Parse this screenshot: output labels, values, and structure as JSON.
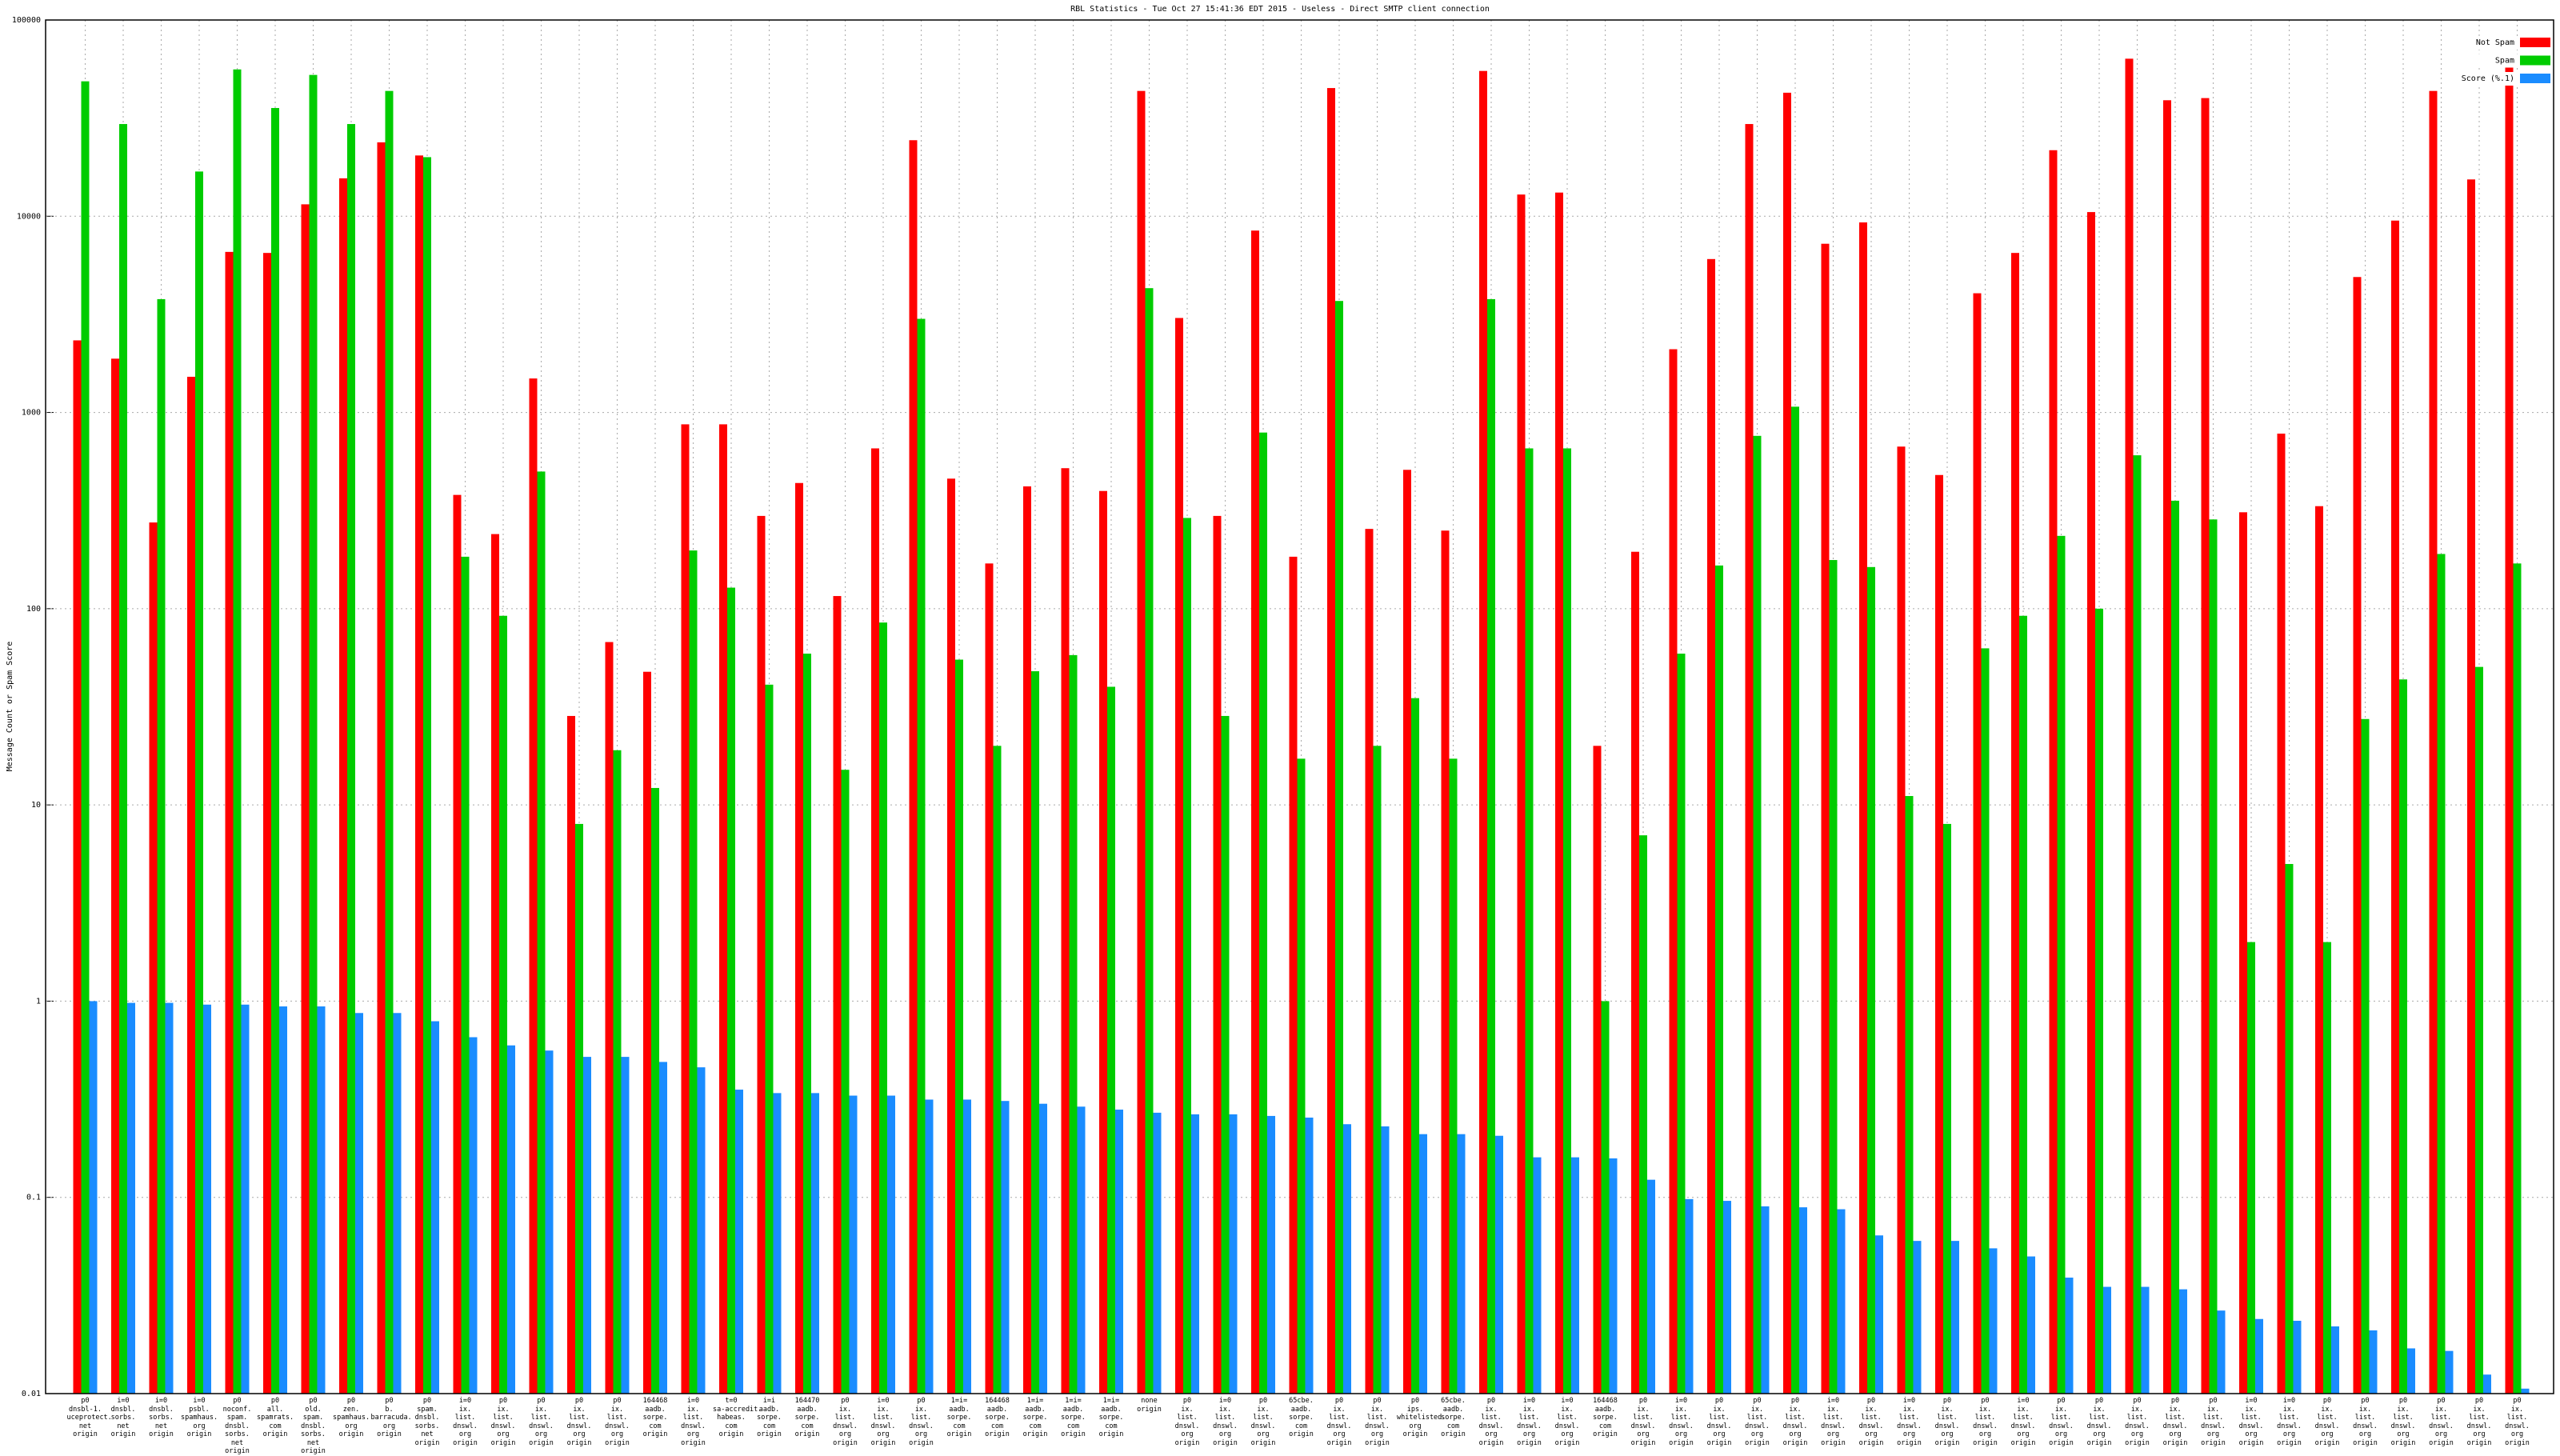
{
  "chart_data": {
    "type": "bar",
    "title": "RBL Statistics - Tue Oct 27 15:41:36 EDT 2015 - Useless - Direct SMTP client connection",
    "y_label": "Message Count or Spam Score",
    "yscale": "log",
    "grid": true,
    "legend": "top-right",
    "ylim": [
      0.01,
      100000
    ],
    "yticks": [
      0.01,
      0.1,
      1,
      10,
      100,
      1000,
      10000,
      100000
    ],
    "categories": [
      "p0\ndnsbl-1.\nuceprotect.\nnet\norigin",
      "i=0\ndnsbl.\nsorbs.\nnet\norigin",
      "i=0\ndnsbl.\nsorbs.\nnet\norigin",
      "i=0\npsbl.\nspamhaus.\norg\norigin",
      "p0\nnoconf.\nspam.\ndnsbl.\nsorbs.\nnet\norigin",
      "p0\nall.\nspamrats.\ncom\norigin",
      "p0\nold.\nspam.\ndnsbl.\nsorbs.\nnet\norigin",
      "p0\nzen.\nspamhaus.\norg\norigin",
      "p0\nb.\nbarracuda.\norg\norigin",
      "p0\nspam.\ndnsbl.\nsorbs.\nnet\norigin",
      "i=0\nix.\nlist.\ndnswl.\norg\norigin",
      "p0\nix.\nlist.\ndnswl.\norg\norigin",
      "p0\nix.\nlist.\ndnswl.\norg\norigin",
      "p0\nix.\nlist.\ndnswl.\norg\norigin",
      "p0\nix.\nlist.\ndnswl.\norg\norigin",
      "164468\naadb.\nsorpe.\ncom\norigin",
      "i=0\nix.\nlist.\ndnswl.\norg\norigin",
      "t=0\nsa-accredit.\nhabeas.\ncom\norigin",
      "i=i\naadb.\nsorpe.\ncom\norigin",
      "164470\naadb.\nsorpe.\ncom\norigin",
      "p0\nix.\nlist.\ndnswl.\norg\norigin",
      "i=0\nix.\nlist.\ndnswl.\norg\norigin",
      "p0\nix.\nlist.\ndnswl.\norg\norigin",
      "1=i=\naadb.\nsorpe.\ncom\norigin",
      "164468\naadb.\nsorpe.\ncom\norigin",
      "1=i=\naadb.\nsorpe.\ncom\norigin",
      "1=i=\naadb.\nsorpe.\ncom\norigin",
      "1=i=\naadb.\nsorpe.\ncom\norigin",
      "none\norigin",
      "p0\nix.\nlist.\ndnswl.\norg\norigin",
      "i=0\nix.\nlist.\ndnswl.\norg\norigin",
      "p0\nix.\nlist.\ndnswl.\norg\norigin",
      "65cbe.\naadb.\nsorpe.\ncom\norigin",
      "p0\nix.\nlist.\ndnswl.\norg\norigin",
      "p0\nix.\nlist.\ndnswl.\norg\norigin",
      "p0\nips.\nwhitelisted.\norg\norigin",
      "65cbe.\naadb.\nsorpe.\ncom\norigin",
      "p0\nix.\nlist.\ndnswl.\norg\norigin",
      "i=0\nix.\nlist.\ndnswl.\norg\norigin",
      "i=0\nix.\nlist.\ndnswl.\norg\norigin",
      "164468\naadb.\nsorpe.\ncom\norigin",
      "p0\nix.\nlist.\ndnswl.\norg\norigin",
      "i=0\nix.\nlist.\ndnswl.\norg\norigin",
      "p0\nix.\nlist.\ndnswl.\norg\norigin",
      "p0\nix.\nlist.\ndnswl.\norg\norigin",
      "p0\nix.\nlist.\ndnswl.\norg\norigin",
      "i=0\nix.\nlist.\ndnswl.\norg\norigin",
      "p0\nix.\nlist.\ndnswl.\norg\norigin",
      "i=0\nix.\nlist.\ndnswl.\norg\norigin",
      "p0\nix.\nlist.\ndnswl.\norg\norigin",
      "p0\nix.\nlist.\ndnswl.\norg\norigin",
      "i=0\nix.\nlist.\ndnswl.\norg\norigin",
      "p0\nix.\nlist.\ndnswl.\norg\norigin",
      "p0\nix.\nlist.\ndnswl.\norg\norigin",
      "p0\nix.\nlist.\ndnswl.\norg\norigin",
      "p0\nix.\nlist.\ndnswl.\norg\norigin",
      "p0\nix.\nlist.\ndnswl.\norg\norigin",
      "i=0\nix.\nlist.\ndnswl.\norg\norigin",
      "i=0\nix.\nlist.\ndnswl.\norg\norigin",
      "p0\nix.\nlist.\ndnswl.\norg\norigin",
      "p0\nix.\nlist.\ndnswl.\norg\norigin",
      "p0\nix.\nlist.\ndnswl.\norg\norigin",
      "p0\nix.\nlist.\ndnswl.\norg\norigin",
      "p0\nix.\nlist.\ndnswl.\norg\norigin",
      "p0\nix.\nlist.\ndnswl.\norg\norigin"
    ],
    "series": [
      {
        "name": "Not Spam",
        "color": "#ff0000",
        "values": [
          2330,
          1880,
          275,
          1520,
          6580,
          6500,
          11500,
          15600,
          23800,
          20400,
          380,
          240,
          1490,
          28.4,
          67.6,
          47.7,
          870,
          870,
          297,
          437,
          116,
          656,
          24400,
          460,
          170,
          420,
          520,
          398,
          43500,
          3030,
          297,
          8450,
          184,
          45000,
          255,
          510,
          250,
          55000,
          12900,
          13200,
          20,
          195,
          2100,
          6050,
          29500,
          42600,
          7240,
          9300,
          670,
          480,
          4050,
          6500,
          21700,
          10500,
          63500,
          39000,
          40000,
          310,
          780,
          333,
          4900,
          9500,
          43500,
          15400,
          63000
        ]
      },
      {
        "name": "Spam",
        "color": "#00cc00",
        "values": [
          48700,
          29500,
          3780,
          16900,
          56000,
          35600,
          52500,
          29500,
          43500,
          20000,
          184,
          92,
          500,
          8,
          19,
          12.2,
          198,
          128,
          41,
          59,
          15.1,
          85,
          3000,
          55,
          20,
          48,
          58,
          40,
          4300,
          290,
          28.4,
          790,
          17.2,
          3700,
          20,
          35,
          17.2,
          3780,
          656,
          656,
          1,
          7,
          59,
          166,
          760,
          1070,
          177,
          163,
          11.1,
          8,
          62.8,
          92,
          235,
          100,
          605,
          355,
          285,
          2,
          5,
          2,
          27.4,
          43.6,
          190,
          50.5,
          170
        ]
      },
      {
        "name": "Score (%.1)",
        "color": "#1a8cff",
        "values": [
          1,
          0.98,
          0.98,
          0.96,
          0.96,
          0.94,
          0.94,
          0.87,
          0.87,
          0.79,
          0.655,
          0.595,
          0.56,
          0.52,
          0.52,
          0.49,
          0.46,
          0.354,
          0.34,
          0.34,
          0.33,
          0.33,
          0.315,
          0.315,
          0.31,
          0.3,
          0.29,
          0.28,
          0.27,
          0.265,
          0.265,
          0.26,
          0.255,
          0.236,
          0.23,
          0.21,
          0.21,
          0.206,
          0.16,
          0.16,
          0.158,
          0.123,
          0.098,
          0.096,
          0.09,
          0.089,
          0.087,
          0.064,
          0.06,
          0.06,
          0.055,
          0.05,
          0.039,
          0.035,
          0.035,
          0.034,
          0.0265,
          0.024,
          0.0235,
          0.022,
          0.021,
          0.017,
          0.0165,
          0.0125,
          0.0106
        ]
      }
    ]
  }
}
